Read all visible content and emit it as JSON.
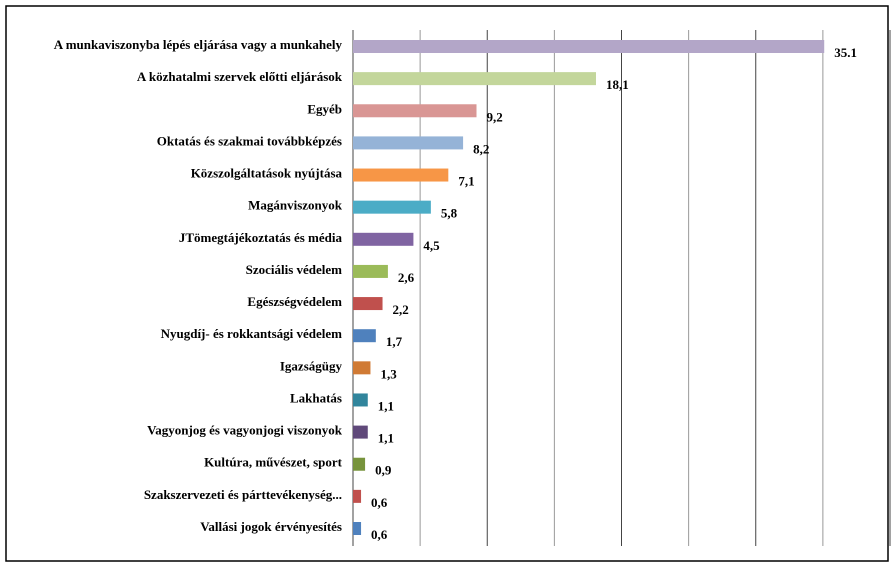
{
  "chart_data": {
    "type": "bar",
    "orientation": "horizontal",
    "categories": [
      "A munkaviszonyba lépés eljárása vagy a munkahely",
      "A közhatalmi szervek előtti eljárások",
      "Egyéb",
      "Oktatás és szakmai továbbképzés",
      "Közszolgáltatások nyújtása",
      "Magánviszonyok",
      "JTömegtájékoztatás és média",
      "Szociális védelem",
      "Egészségvédelem",
      "Nyugdíj- és rokkantsági védelem",
      "Igazságügy",
      "Lakhatás",
      "Vagyonjog és vagyonjogi viszonyok",
      "Kultúra, művészet, sport",
      "Szakszervezeti és párttevékenység...",
      "Vallási jogok érvényesítés"
    ],
    "values": [
      35.1,
      18.1,
      9.2,
      8.2,
      7.1,
      5.8,
      4.5,
      2.6,
      2.2,
      1.7,
      1.3,
      1.1,
      1.1,
      0.9,
      0.6,
      0.6
    ],
    "value_labels": [
      "35.1",
      "18,1",
      "9,2",
      "8,2",
      "7,1",
      "5,8",
      "4,5",
      "2,6",
      "2,2",
      "1,7",
      "1,3",
      "1,1",
      "1,1",
      "0,9",
      "0,6",
      "0,6"
    ],
    "colors": [
      "#b3a6c8",
      "#c3d69b",
      "#d99694",
      "#95b3d7",
      "#f79646",
      "#4bacc6",
      "#8064a2",
      "#9bbb59",
      "#c0504d",
      "#4f81bd",
      "#d07a34",
      "#31859c",
      "#60497a",
      "#77933c",
      "#c0504d",
      "#4f81bd"
    ],
    "xlim": [
      0,
      40
    ],
    "xticks": [
      0,
      5,
      10,
      15,
      20,
      25,
      30,
      35,
      40
    ],
    "grid": true
  }
}
